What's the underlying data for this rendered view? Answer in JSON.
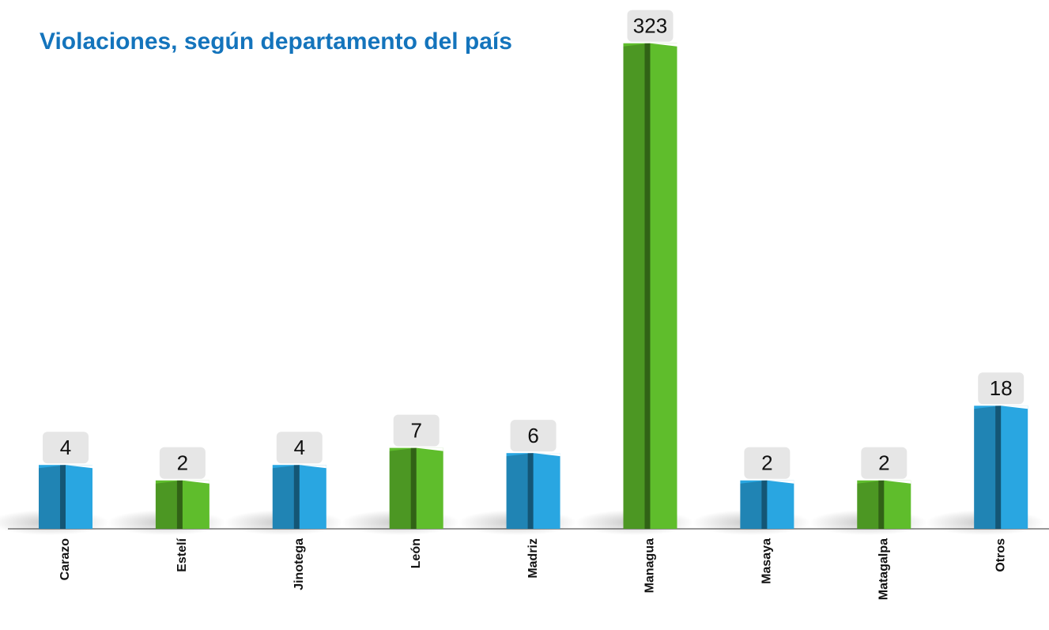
{
  "chart_data": {
    "type": "bar",
    "title": "Violaciones, según departamento del país",
    "categories": [
      "Carazo",
      "Estelí",
      "Jinotega",
      "León",
      "Madriz",
      "Managua",
      "Masaya",
      "Matagalpa",
      "Otros"
    ],
    "values": [
      4,
      2,
      4,
      7,
      6,
      323,
      2,
      2,
      18
    ],
    "colors": [
      "#29a6e1",
      "#5fbd2c",
      "#29a6e1",
      "#5fbd2c",
      "#29a6e1",
      "#5fbd2c",
      "#29a6e1",
      "#5fbd2c",
      "#29a6e1"
    ]
  }
}
